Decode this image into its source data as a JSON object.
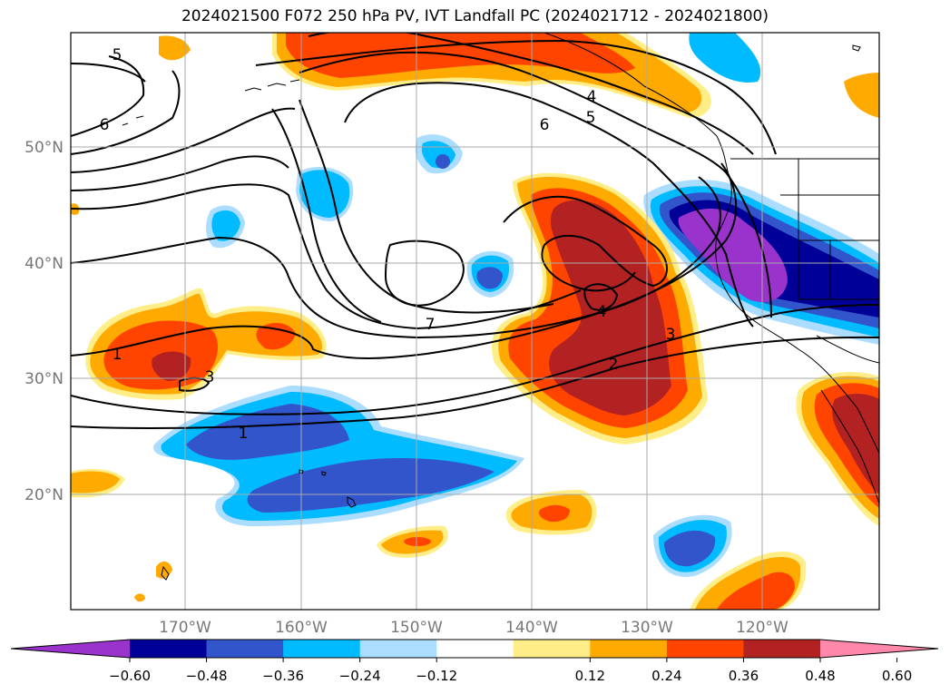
{
  "title": "2024021500 F072 250 hPa PV, IVT Landfall PC (2024021712 - 2024021800)",
  "map": {
    "lat_labels": [
      "50°N",
      "40°N",
      "30°N",
      "20°N"
    ],
    "lon_labels": [
      "170°W",
      "160°W",
      "150°W",
      "140°W",
      "130°W",
      "120°W"
    ],
    "contour_labels": [
      "5",
      "6",
      "4",
      "5",
      "6",
      "7",
      "4",
      "3",
      "2",
      "3",
      "1",
      "1"
    ]
  },
  "colorbar": {
    "ticks": [
      "−0.60",
      "−0.48",
      "−0.36",
      "−0.24",
      "−0.12",
      "0.12",
      "0.24",
      "0.36",
      "0.48",
      "0.60"
    ],
    "colors": [
      "#9933cc",
      "#000099",
      "#3355cc",
      "#00bbff",
      "#aaddff",
      "#ffffff",
      "#ffee88",
      "#ffaa00",
      "#ff4400",
      "#b22222",
      "#ff88aa"
    ]
  }
}
